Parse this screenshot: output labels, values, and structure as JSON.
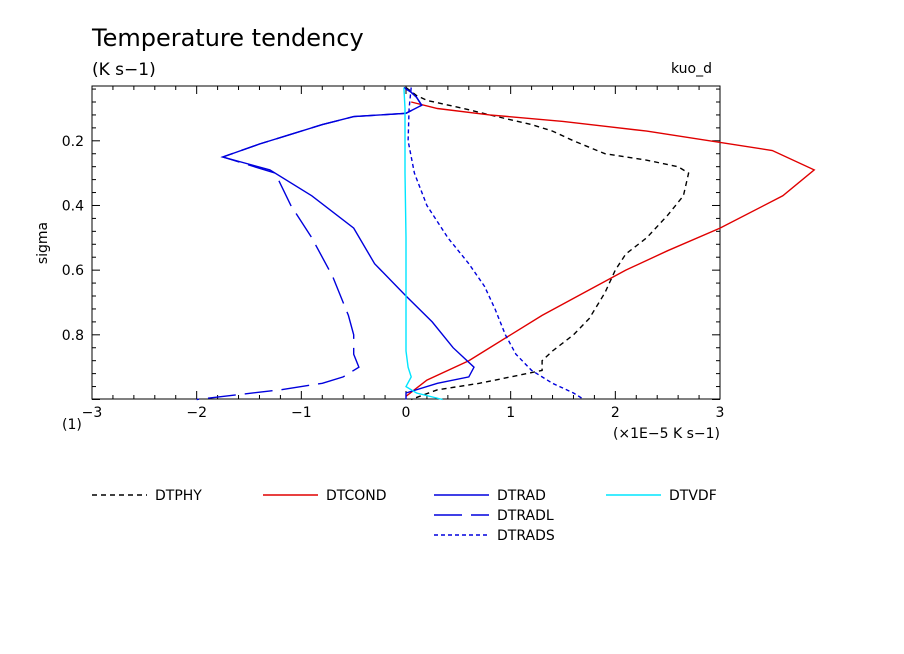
{
  "title": "Temperature tendency",
  "units": "(K s−1)",
  "case_label": "kuo_d",
  "corner_label": "(1)",
  "chart_data": {
    "type": "line",
    "title": "Temperature tendency",
    "ylabel": "sigma",
    "xunits": "(×1E−5 K s−1)",
    "xlim": [
      -3,
      3
    ],
    "ylim": [
      1.0,
      0.03
    ],
    "y_inverted": true,
    "xticks": [
      -3,
      -2,
      -1,
      0,
      1,
      2,
      3
    ],
    "xtick_labels": [
      "−3",
      "−2",
      "−1",
      "0",
      "1",
      "2",
      "3"
    ],
    "yticks": [
      0.2,
      0.4,
      0.6,
      0.8
    ],
    "ytick_labels": [
      "0.2",
      "0.4",
      "0.6",
      "0.8"
    ],
    "series": [
      {
        "name": "DTPHY",
        "color": "#000000",
        "dash": "5,4",
        "points": [
          [
            0.0,
            0.035
          ],
          [
            0.1,
            0.06
          ],
          [
            0.2,
            0.075
          ],
          [
            0.55,
            0.1
          ],
          [
            0.8,
            0.12
          ],
          [
            1.2,
            0.15
          ],
          [
            1.4,
            0.17
          ],
          [
            1.6,
            0.2
          ],
          [
            1.9,
            0.24
          ],
          [
            2.3,
            0.26
          ],
          [
            2.6,
            0.28
          ],
          [
            2.7,
            0.3
          ],
          [
            2.65,
            0.37
          ],
          [
            2.5,
            0.43
          ],
          [
            2.3,
            0.5
          ],
          [
            2.1,
            0.55
          ],
          [
            2.0,
            0.6
          ],
          [
            1.9,
            0.67
          ],
          [
            1.75,
            0.75
          ],
          [
            1.6,
            0.8
          ],
          [
            1.4,
            0.85
          ],
          [
            1.3,
            0.88
          ],
          [
            1.3,
            0.91
          ],
          [
            1.0,
            0.93
          ],
          [
            0.7,
            0.95
          ],
          [
            0.3,
            0.97
          ],
          [
            0.05,
            1.0
          ]
        ]
      },
      {
        "name": "DTCOND",
        "color": "#e00000",
        "dash": "",
        "points": [
          [
            0.05,
            0.08
          ],
          [
            0.3,
            0.1
          ],
          [
            0.8,
            0.12
          ],
          [
            1.5,
            0.14
          ],
          [
            2.3,
            0.17
          ],
          [
            3.5,
            0.23
          ],
          [
            3.9,
            0.29
          ],
          [
            3.6,
            0.37
          ],
          [
            3.0,
            0.47
          ],
          [
            2.5,
            0.54
          ],
          [
            2.1,
            0.6
          ],
          [
            1.7,
            0.67
          ],
          [
            1.3,
            0.74
          ],
          [
            1.0,
            0.8
          ],
          [
            0.75,
            0.85
          ],
          [
            0.6,
            0.88
          ],
          [
            0.2,
            0.94
          ],
          [
            0.0,
            0.99
          ]
        ]
      },
      {
        "name": "DTRAD",
        "color": "#0000dd",
        "dash": "",
        "points": [
          [
            -0.02,
            0.035
          ],
          [
            0.05,
            0.05
          ],
          [
            0.1,
            0.065
          ],
          [
            0.15,
            0.09
          ],
          [
            0.0,
            0.115
          ],
          [
            -0.5,
            0.125
          ],
          [
            -0.8,
            0.15
          ],
          [
            -1.1,
            0.18
          ],
          [
            -1.4,
            0.21
          ],
          [
            -1.75,
            0.25
          ],
          [
            -1.3,
            0.29
          ],
          [
            -0.9,
            0.37
          ],
          [
            -0.5,
            0.47
          ],
          [
            -0.3,
            0.58
          ],
          [
            0.0,
            0.68
          ],
          [
            0.25,
            0.76
          ],
          [
            0.45,
            0.84
          ],
          [
            0.65,
            0.9
          ],
          [
            0.6,
            0.93
          ],
          [
            0.3,
            0.95
          ],
          [
            0.0,
            0.98
          ],
          [
            0.0,
            1.0
          ]
        ]
      },
      {
        "name": "DTRADL",
        "color": "#0000dd",
        "dash": "28,9",
        "points": [
          [
            -0.02,
            0.035
          ],
          [
            0.05,
            0.05
          ],
          [
            0.1,
            0.065
          ],
          [
            0.15,
            0.09
          ],
          [
            0.0,
            0.115
          ],
          [
            -0.5,
            0.125
          ],
          [
            -0.8,
            0.15
          ],
          [
            -1.1,
            0.18
          ],
          [
            -1.4,
            0.21
          ],
          [
            -1.75,
            0.25
          ],
          [
            -1.25,
            0.3
          ],
          [
            -1.1,
            0.4
          ],
          [
            -0.9,
            0.5
          ],
          [
            -0.7,
            0.62
          ],
          [
            -0.55,
            0.74
          ],
          [
            -0.5,
            0.8
          ],
          [
            -0.5,
            0.86
          ],
          [
            -0.45,
            0.9
          ],
          [
            -0.6,
            0.93
          ],
          [
            -0.8,
            0.95
          ],
          [
            -1.2,
            0.97
          ],
          [
            -1.6,
            0.985
          ],
          [
            -2.0,
            1.0
          ]
        ]
      },
      {
        "name": "DTRADS",
        "color": "#0000dd",
        "dash": "4,3",
        "points": [
          [
            0.05,
            0.035
          ],
          [
            0.03,
            0.1
          ],
          [
            0.02,
            0.2
          ],
          [
            0.08,
            0.3
          ],
          [
            0.2,
            0.4
          ],
          [
            0.4,
            0.5
          ],
          [
            0.6,
            0.58
          ],
          [
            0.75,
            0.65
          ],
          [
            0.85,
            0.72
          ],
          [
            0.95,
            0.8
          ],
          [
            1.05,
            0.86
          ],
          [
            1.2,
            0.91
          ],
          [
            1.4,
            0.95
          ],
          [
            1.6,
            0.98
          ],
          [
            1.7,
            1.0
          ]
        ]
      },
      {
        "name": "DTVDF",
        "color": "#00e5ff",
        "dash": "",
        "points": [
          [
            -0.02,
            0.035
          ],
          [
            -0.01,
            0.1
          ],
          [
            -0.01,
            0.3
          ],
          [
            0.0,
            0.5
          ],
          [
            0.0,
            0.7
          ],
          [
            0.0,
            0.85
          ],
          [
            0.02,
            0.9
          ],
          [
            0.05,
            0.93
          ],
          [
            0.0,
            0.96
          ],
          [
            0.1,
            0.98
          ],
          [
            0.35,
            1.0
          ]
        ]
      }
    ]
  }
}
